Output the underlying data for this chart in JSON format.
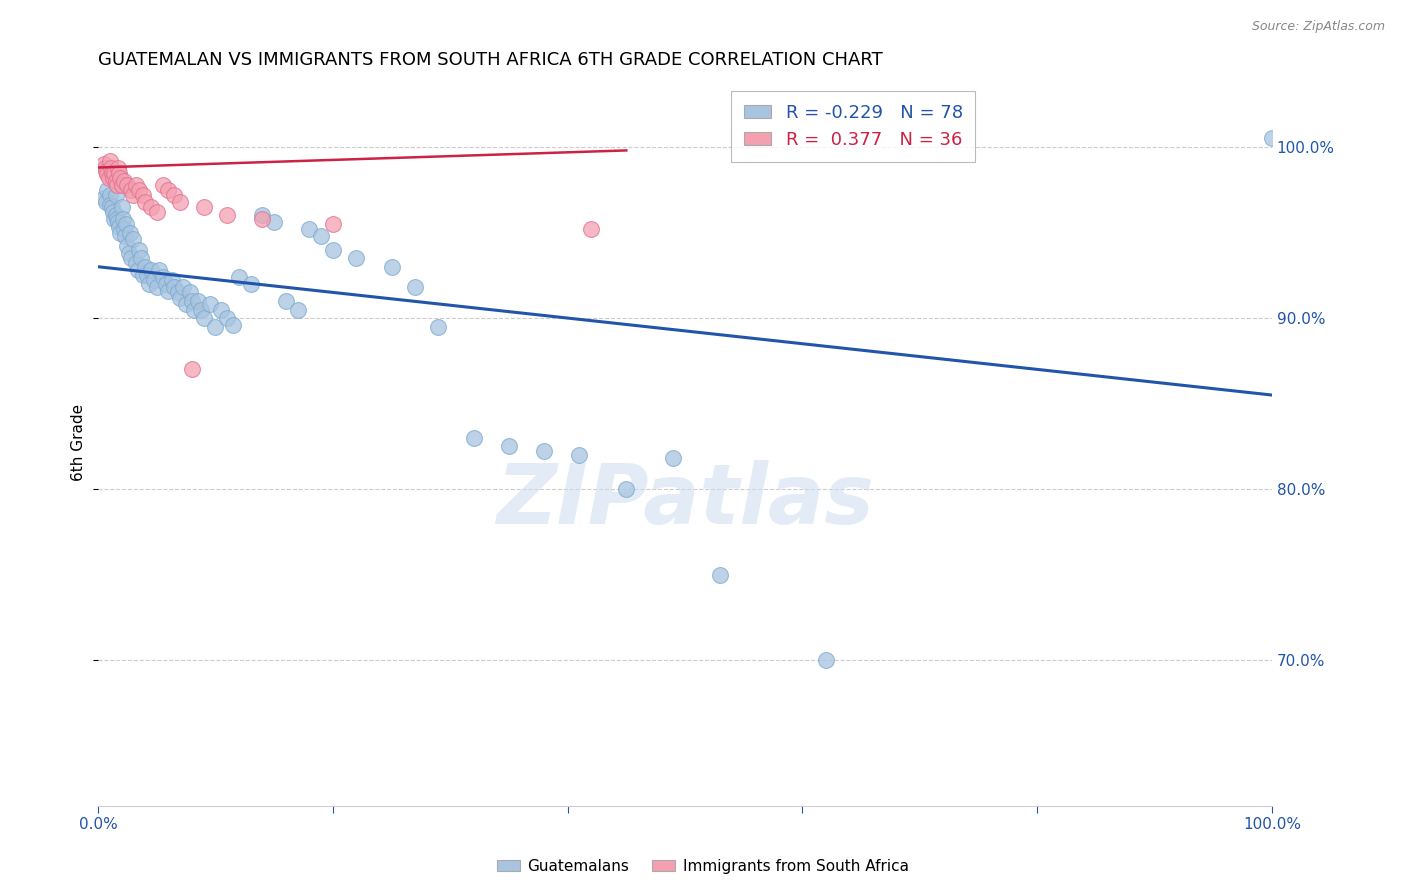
{
  "title": "GUATEMALAN VS IMMIGRANTS FROM SOUTH AFRICA 6TH GRADE CORRELATION CHART",
  "source": "Source: ZipAtlas.com",
  "ylabel": "6th Grade",
  "xlim": [
    0.0,
    1.0
  ],
  "ylim": [
    0.615,
    1.04
  ],
  "yticks": [
    0.7,
    0.8,
    0.9,
    1.0
  ],
  "ytick_labels": [
    "70.0%",
    "80.0%",
    "90.0%",
    "100.0%"
  ],
  "xticks": [
    0.0,
    0.2,
    0.4,
    0.6,
    0.8,
    1.0
  ],
  "xtick_labels": [
    "0.0%",
    "",
    "",
    "",
    "",
    "100.0%"
  ],
  "watermark": "ZIPatlas",
  "blue_R": -0.229,
  "blue_N": 78,
  "pink_R": 0.377,
  "pink_N": 36,
  "blue_color": "#a8c4e0",
  "pink_color": "#f4a0b0",
  "blue_line_color": "#2255aa",
  "pink_line_color": "#cc2244",
  "background_color": "#ffffff",
  "grid_color": "#cccccc",
  "blue_line_x0": 0.0,
  "blue_line_y0": 0.93,
  "blue_line_x1": 1.0,
  "blue_line_y1": 0.855,
  "pink_line_x0": 0.0,
  "pink_line_y0": 0.988,
  "pink_line_x1": 0.45,
  "pink_line_y1": 0.998,
  "blue_x": [
    0.005,
    0.007,
    0.008,
    0.01,
    0.01,
    0.012,
    0.013,
    0.014,
    0.015,
    0.015,
    0.016,
    0.017,
    0.018,
    0.019,
    0.02,
    0.021,
    0.022,
    0.023,
    0.024,
    0.025,
    0.026,
    0.027,
    0.028,
    0.03,
    0.032,
    0.034,
    0.035,
    0.037,
    0.038,
    0.04,
    0.042,
    0.043,
    0.045,
    0.048,
    0.05,
    0.052,
    0.055,
    0.058,
    0.06,
    0.063,
    0.065,
    0.068,
    0.07,
    0.072,
    0.075,
    0.078,
    0.08,
    0.082,
    0.085,
    0.088,
    0.09,
    0.095,
    0.1,
    0.105,
    0.11,
    0.115,
    0.12,
    0.13,
    0.14,
    0.15,
    0.16,
    0.17,
    0.18,
    0.19,
    0.2,
    0.22,
    0.25,
    0.27,
    0.29,
    0.32,
    0.35,
    0.38,
    0.41,
    0.45,
    0.49,
    0.53,
    0.62,
    1.0
  ],
  "blue_y": [
    0.97,
    0.968,
    0.975,
    0.972,
    0.966,
    0.965,
    0.962,
    0.958,
    0.972,
    0.96,
    0.958,
    0.956,
    0.953,
    0.95,
    0.965,
    0.958,
    0.952,
    0.948,
    0.955,
    0.942,
    0.938,
    0.95,
    0.935,
    0.946,
    0.932,
    0.928,
    0.94,
    0.935,
    0.925,
    0.93,
    0.925,
    0.92,
    0.928,
    0.922,
    0.918,
    0.928,
    0.924,
    0.92,
    0.916,
    0.922,
    0.918,
    0.915,
    0.912,
    0.918,
    0.908,
    0.915,
    0.91,
    0.905,
    0.91,
    0.905,
    0.9,
    0.908,
    0.895,
    0.905,
    0.9,
    0.896,
    0.924,
    0.92,
    0.96,
    0.956,
    0.91,
    0.905,
    0.952,
    0.948,
    0.94,
    0.935,
    0.93,
    0.918,
    0.895,
    0.83,
    0.825,
    0.822,
    0.82,
    0.8,
    0.818,
    0.75,
    0.7,
    1.005
  ],
  "pink_x": [
    0.005,
    0.006,
    0.007,
    0.008,
    0.009,
    0.01,
    0.011,
    0.012,
    0.013,
    0.014,
    0.015,
    0.016,
    0.017,
    0.018,
    0.019,
    0.02,
    0.022,
    0.025,
    0.028,
    0.03,
    0.032,
    0.035,
    0.038,
    0.04,
    0.045,
    0.05,
    0.055,
    0.06,
    0.065,
    0.07,
    0.08,
    0.09,
    0.11,
    0.14,
    0.2,
    0.42
  ],
  "pink_y": [
    0.99,
    0.988,
    0.986,
    0.984,
    0.982,
    0.992,
    0.988,
    0.985,
    0.982,
    0.985,
    0.98,
    0.978,
    0.988,
    0.985,
    0.982,
    0.978,
    0.98,
    0.978,
    0.975,
    0.972,
    0.978,
    0.975,
    0.972,
    0.968,
    0.965,
    0.962,
    0.978,
    0.975,
    0.972,
    0.968,
    0.87,
    0.965,
    0.96,
    0.958,
    0.955,
    0.952
  ]
}
